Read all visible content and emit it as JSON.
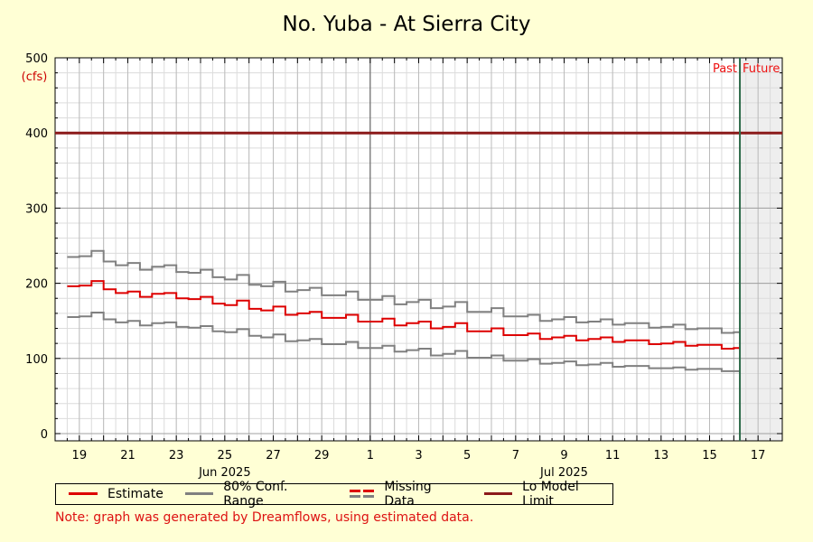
{
  "chart_data": {
    "type": "line",
    "title": "No. Yuba - At Sierra City",
    "ylabel_unit": "(cfs)",
    "ylim": [
      0,
      500
    ],
    "y_ticks": [
      0,
      100,
      200,
      300,
      400,
      500
    ],
    "x_range_days": [
      "2025-06-18",
      "2025-07-18"
    ],
    "x_tick_labels": [
      {
        "date": "2025-06-19",
        "label": "19"
      },
      {
        "date": "2025-06-21",
        "label": "21"
      },
      {
        "date": "2025-06-23",
        "label": "23"
      },
      {
        "date": "2025-06-25",
        "label": "25"
      },
      {
        "date": "2025-06-27",
        "label": "27"
      },
      {
        "date": "2025-06-29",
        "label": "29"
      },
      {
        "date": "2025-07-01",
        "label": "1"
      },
      {
        "date": "2025-07-03",
        "label": "3"
      },
      {
        "date": "2025-07-05",
        "label": "5"
      },
      {
        "date": "2025-07-07",
        "label": "7"
      },
      {
        "date": "2025-07-09",
        "label": "9"
      },
      {
        "date": "2025-07-11",
        "label": "11"
      },
      {
        "date": "2025-07-13",
        "label": "13"
      },
      {
        "date": "2025-07-15",
        "label": "15"
      },
      {
        "date": "2025-07-17",
        "label": "17"
      }
    ],
    "month_labels": [
      {
        "date": "2025-06-25",
        "label": "Jun 2025"
      },
      {
        "date": "2025-07-09",
        "label": "Jul 2025"
      }
    ],
    "month_boundary": "2025-07-01",
    "now": "2025-07-16T06:00",
    "region_labels": {
      "past": "Past",
      "future": "Future"
    },
    "lo_model_limit": 400,
    "series": [
      {
        "name": "Estimate",
        "color": "#dd0000",
        "x": [
          "2025-06-18T12:00",
          "2025-06-19",
          "2025-06-19T12:00",
          "2025-06-20",
          "2025-06-20T12:00",
          "2025-06-21",
          "2025-06-21T12:00",
          "2025-06-22",
          "2025-06-22T12:00",
          "2025-06-23",
          "2025-06-23T12:00",
          "2025-06-24",
          "2025-06-24T12:00",
          "2025-06-25",
          "2025-06-25T12:00",
          "2025-06-26",
          "2025-06-26T12:00",
          "2025-06-27",
          "2025-06-27T12:00",
          "2025-06-28",
          "2025-06-28T12:00",
          "2025-06-29",
          "2025-06-29T12:00",
          "2025-06-30",
          "2025-06-30T12:00",
          "2025-07-01",
          "2025-07-01T12:00",
          "2025-07-02",
          "2025-07-02T12:00",
          "2025-07-03",
          "2025-07-03T12:00",
          "2025-07-04",
          "2025-07-04T12:00",
          "2025-07-05",
          "2025-07-05T12:00",
          "2025-07-06",
          "2025-07-06T12:00",
          "2025-07-07",
          "2025-07-07T12:00",
          "2025-07-08",
          "2025-07-08T12:00",
          "2025-07-09",
          "2025-07-09T12:00",
          "2025-07-10",
          "2025-07-10T12:00",
          "2025-07-11",
          "2025-07-11T12:00",
          "2025-07-12",
          "2025-07-12T12:00",
          "2025-07-13",
          "2025-07-13T12:00",
          "2025-07-14",
          "2025-07-14T12:00",
          "2025-07-15",
          "2025-07-15T12:00",
          "2025-07-16",
          "2025-07-16T06:00"
        ],
        "values": [
          196,
          197,
          203,
          192,
          187,
          189,
          182,
          186,
          187,
          180,
          179,
          182,
          173,
          171,
          177,
          166,
          164,
          169,
          158,
          160,
          162,
          154,
          154,
          158,
          149,
          149,
          153,
          144,
          147,
          149,
          140,
          142,
          147,
          136,
          136,
          140,
          131,
          131,
          133,
          126,
          128,
          130,
          124,
          126,
          128,
          122,
          124,
          124,
          119,
          120,
          122,
          117,
          118,
          118,
          113,
          114,
          112
        ]
      },
      {
        "name": "80% Conf. Range",
        "color": "#808080",
        "bounds": "upper",
        "x": [
          "2025-06-18T12:00",
          "2025-06-19",
          "2025-06-19T12:00",
          "2025-06-20",
          "2025-06-20T12:00",
          "2025-06-21",
          "2025-06-21T12:00",
          "2025-06-22",
          "2025-06-22T12:00",
          "2025-06-23",
          "2025-06-23T12:00",
          "2025-06-24",
          "2025-06-24T12:00",
          "2025-06-25",
          "2025-06-25T12:00",
          "2025-06-26",
          "2025-06-26T12:00",
          "2025-06-27",
          "2025-06-27T12:00",
          "2025-06-28",
          "2025-06-28T12:00",
          "2025-06-29",
          "2025-06-29T12:00",
          "2025-06-30",
          "2025-06-30T12:00",
          "2025-07-01",
          "2025-07-01T12:00",
          "2025-07-02",
          "2025-07-02T12:00",
          "2025-07-03",
          "2025-07-03T12:00",
          "2025-07-04",
          "2025-07-04T12:00",
          "2025-07-05",
          "2025-07-05T12:00",
          "2025-07-06",
          "2025-07-06T12:00",
          "2025-07-07",
          "2025-07-07T12:00",
          "2025-07-08",
          "2025-07-08T12:00",
          "2025-07-09",
          "2025-07-09T12:00",
          "2025-07-10",
          "2025-07-10T12:00",
          "2025-07-11",
          "2025-07-11T12:00",
          "2025-07-12",
          "2025-07-12T12:00",
          "2025-07-13",
          "2025-07-13T12:00",
          "2025-07-14",
          "2025-07-14T12:00",
          "2025-07-15",
          "2025-07-15T12:00",
          "2025-07-16",
          "2025-07-16T06:00"
        ],
        "values": [
          235,
          236,
          243,
          229,
          224,
          227,
          218,
          222,
          224,
          215,
          214,
          218,
          208,
          205,
          211,
          198,
          196,
          202,
          189,
          191,
          194,
          184,
          184,
          189,
          178,
          178,
          183,
          172,
          175,
          178,
          167,
          169,
          175,
          162,
          162,
          167,
          156,
          156,
          158,
          150,
          152,
          155,
          148,
          149,
          152,
          145,
          147,
          147,
          141,
          142,
          145,
          139,
          140,
          140,
          134,
          135,
          133
        ]
      },
      {
        "name": "80% Conf. Range",
        "color": "#808080",
        "bounds": "lower",
        "x": [
          "2025-06-18T12:00",
          "2025-06-19",
          "2025-06-19T12:00",
          "2025-06-20",
          "2025-06-20T12:00",
          "2025-06-21",
          "2025-06-21T12:00",
          "2025-06-22",
          "2025-06-22T12:00",
          "2025-06-23",
          "2025-06-23T12:00",
          "2025-06-24",
          "2025-06-24T12:00",
          "2025-06-25",
          "2025-06-25T12:00",
          "2025-06-26",
          "2025-06-26T12:00",
          "2025-06-27",
          "2025-06-27T12:00",
          "2025-06-28",
          "2025-06-28T12:00",
          "2025-06-29",
          "2025-06-29T12:00",
          "2025-06-30",
          "2025-06-30T12:00",
          "2025-07-01",
          "2025-07-01T12:00",
          "2025-07-02",
          "2025-07-02T12:00",
          "2025-07-03",
          "2025-07-03T12:00",
          "2025-07-04",
          "2025-07-04T12:00",
          "2025-07-05",
          "2025-07-05T12:00",
          "2025-07-06",
          "2025-07-06T12:00",
          "2025-07-07",
          "2025-07-07T12:00",
          "2025-07-08",
          "2025-07-08T12:00",
          "2025-07-09",
          "2025-07-09T12:00",
          "2025-07-10",
          "2025-07-10T12:00",
          "2025-07-11",
          "2025-07-11T12:00",
          "2025-07-12",
          "2025-07-12T12:00",
          "2025-07-13",
          "2025-07-13T12:00",
          "2025-07-14",
          "2025-07-14T12:00",
          "2025-07-15",
          "2025-07-15T12:00",
          "2025-07-16",
          "2025-07-16T06:00"
        ],
        "values": [
          155,
          156,
          161,
          152,
          148,
          150,
          144,
          147,
          148,
          142,
          141,
          143,
          136,
          135,
          139,
          130,
          128,
          132,
          123,
          124,
          126,
          119,
          119,
          122,
          114,
          114,
          117,
          109,
          111,
          113,
          104,
          106,
          110,
          101,
          101,
          104,
          97,
          97,
          99,
          93,
          94,
          96,
          91,
          92,
          94,
          89,
          90,
          90,
          87,
          87,
          88,
          85,
          86,
          86,
          83,
          83,
          82
        ]
      }
    ],
    "legend": {
      "placement": "bottom",
      "items": [
        {
          "label": "Estimate",
          "style": "solid",
          "color": "#dd0000"
        },
        {
          "label": "80% Conf. Range",
          "style": "solid",
          "color": "#808080"
        },
        {
          "label": "Missing Data",
          "style": "dashed",
          "colors": [
            "#dd0000",
            "#808080"
          ]
        },
        {
          "label": "Lo Model Limit",
          "style": "solid",
          "color": "#8b1a1a"
        }
      ]
    },
    "colors": {
      "background": "#ffffd5",
      "plot_background": "#ffffff",
      "future_region": "#eeeeee",
      "grid_major": "#a0a0a0",
      "grid_minor": "#dcdcdc",
      "now_line": "#2e6b4a",
      "limit_line": "#8b1a1a"
    },
    "grid": true
  },
  "note": "Note: graph was generated by Dreamflows, using estimated data."
}
